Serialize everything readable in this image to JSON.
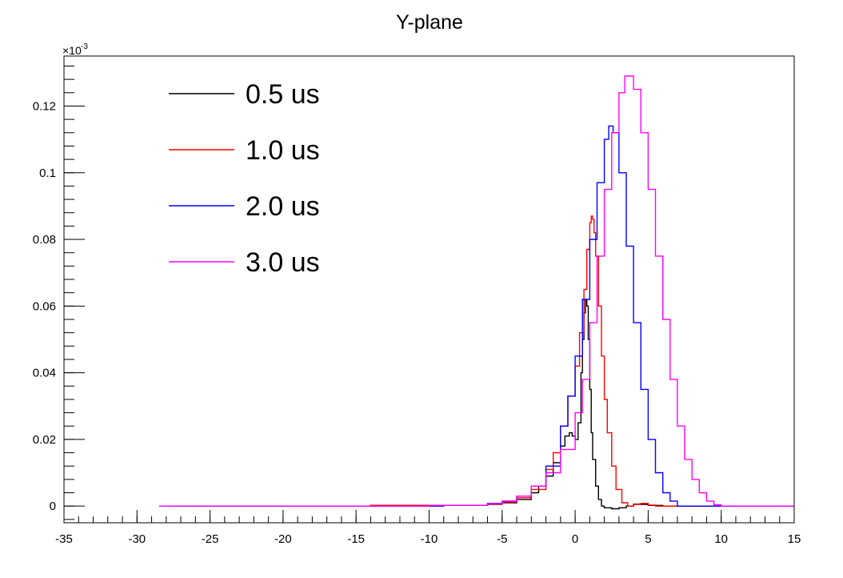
{
  "chart_data": {
    "type": "line",
    "title": "Y-plane",
    "xlabel": "",
    "ylabel": "",
    "y_exponent_label": "×10",
    "y_exponent_power": "-3",
    "xlim": [
      -35,
      15
    ],
    "ylim": [
      -0.005,
      0.135
    ],
    "x_ticks": [
      -35,
      -30,
      -25,
      -20,
      -15,
      -10,
      -5,
      0,
      5,
      10,
      15
    ],
    "y_ticks": [
      0,
      0.02,
      0.04,
      0.06,
      0.08,
      0.1,
      0.12
    ],
    "x_tick_labels": [
      "-35",
      "-30",
      "-25",
      "-20",
      "-15",
      "-10",
      "-5",
      "0",
      "5",
      "10",
      "15"
    ],
    "y_tick_labels": [
      "0",
      "0.02",
      "0.04",
      "0.06",
      "0.08",
      "0.1",
      "0.12"
    ],
    "grid": false,
    "legend_position": "top-left",
    "series": [
      {
        "name": "0.5 us",
        "color": "#000000",
        "x": [
          -28,
          -14,
          -6,
          -5,
          -4,
          -3,
          -2.5,
          -2,
          -1.5,
          -1,
          -0.7,
          -0.4,
          -0.2,
          0,
          0.2,
          0.4,
          0.5,
          0.6,
          0.7,
          0.8,
          0.9,
          1.0,
          1.1,
          1.2,
          1.4,
          1.6,
          1.8,
          2.0,
          2.5,
          3,
          3.5,
          4,
          4.5,
          5,
          6,
          15
        ],
        "y": [
          0,
          0.0002,
          0.0005,
          0.001,
          0.002,
          0.004,
          0.006,
          0.009,
          0.013,
          0.018,
          0.021,
          0.022,
          0.021,
          0.02,
          0.025,
          0.04,
          0.05,
          0.058,
          0.062,
          0.06,
          0.05,
          0.035,
          0.022,
          0.014,
          0.006,
          0.002,
          0,
          -0.0005,
          -0.0008,
          -0.0005,
          0,
          0.0006,
          0.0005,
          0.0002,
          0,
          0
        ]
      },
      {
        "name": "1.0 us",
        "color": "#ff0000",
        "x": [
          -20,
          -14,
          -6,
          -5,
          -4,
          -3,
          -2,
          -1.5,
          -1,
          -0.5,
          0,
          0.3,
          0.6,
          0.8,
          1.0,
          1.1,
          1.2,
          1.3,
          1.4,
          1.6,
          1.8,
          2.0,
          2.2,
          2.5,
          2.8,
          3.2,
          3.6,
          4,
          4.5,
          5,
          5.5,
          15
        ],
        "y": [
          0,
          0.0002,
          0.0006,
          0.0012,
          0.0025,
          0.005,
          0.011,
          0.016,
          0.024,
          0.033,
          0.042,
          0.052,
          0.065,
          0.077,
          0.085,
          0.087,
          0.086,
          0.082,
          0.075,
          0.06,
          0.045,
          0.032,
          0.022,
          0.012,
          0.005,
          0.001,
          0,
          0.0005,
          0.0008,
          0.0003,
          0,
          0
        ]
      },
      {
        "name": "2.0 us",
        "color": "#0000ff",
        "x": [
          -27,
          -20,
          -9,
          -6,
          -5,
          -4,
          -3,
          -2,
          -1,
          -0.5,
          0,
          0.5,
          1,
          1.5,
          2,
          2.3,
          2.6,
          3,
          3.5,
          4,
          4.5,
          5,
          5.5,
          6,
          6.5,
          7,
          15
        ],
        "y": [
          0,
          0,
          0.0002,
          0.0008,
          0.0015,
          0.003,
          0.006,
          0.012,
          0.024,
          0.033,
          0.045,
          0.062,
          0.08,
          0.097,
          0.11,
          0.114,
          0.112,
          0.1,
          0.078,
          0.055,
          0.035,
          0.02,
          0.01,
          0.004,
          0.0015,
          0,
          0
        ]
      },
      {
        "name": "3.0 us",
        "color": "#ff00ff",
        "x": [
          -28.5,
          -10,
          -6,
          -5,
          -4,
          -3,
          -2,
          -1,
          0,
          0.5,
          1,
          1.5,
          2,
          2.5,
          3,
          3.4,
          4,
          4.5,
          5,
          5.5,
          6,
          6.5,
          7,
          7.5,
          8,
          8.5,
          9,
          9.5,
          10,
          15
        ],
        "y": [
          0,
          0.0002,
          0.0007,
          0.0015,
          0.003,
          0.006,
          0.01,
          0.017,
          0.028,
          0.038,
          0.055,
          0.075,
          0.095,
          0.112,
          0.124,
          0.129,
          0.125,
          0.112,
          0.095,
          0.075,
          0.056,
          0.038,
          0.024,
          0.014,
          0.008,
          0.004,
          0.0015,
          0.0004,
          0,
          0
        ]
      }
    ]
  }
}
